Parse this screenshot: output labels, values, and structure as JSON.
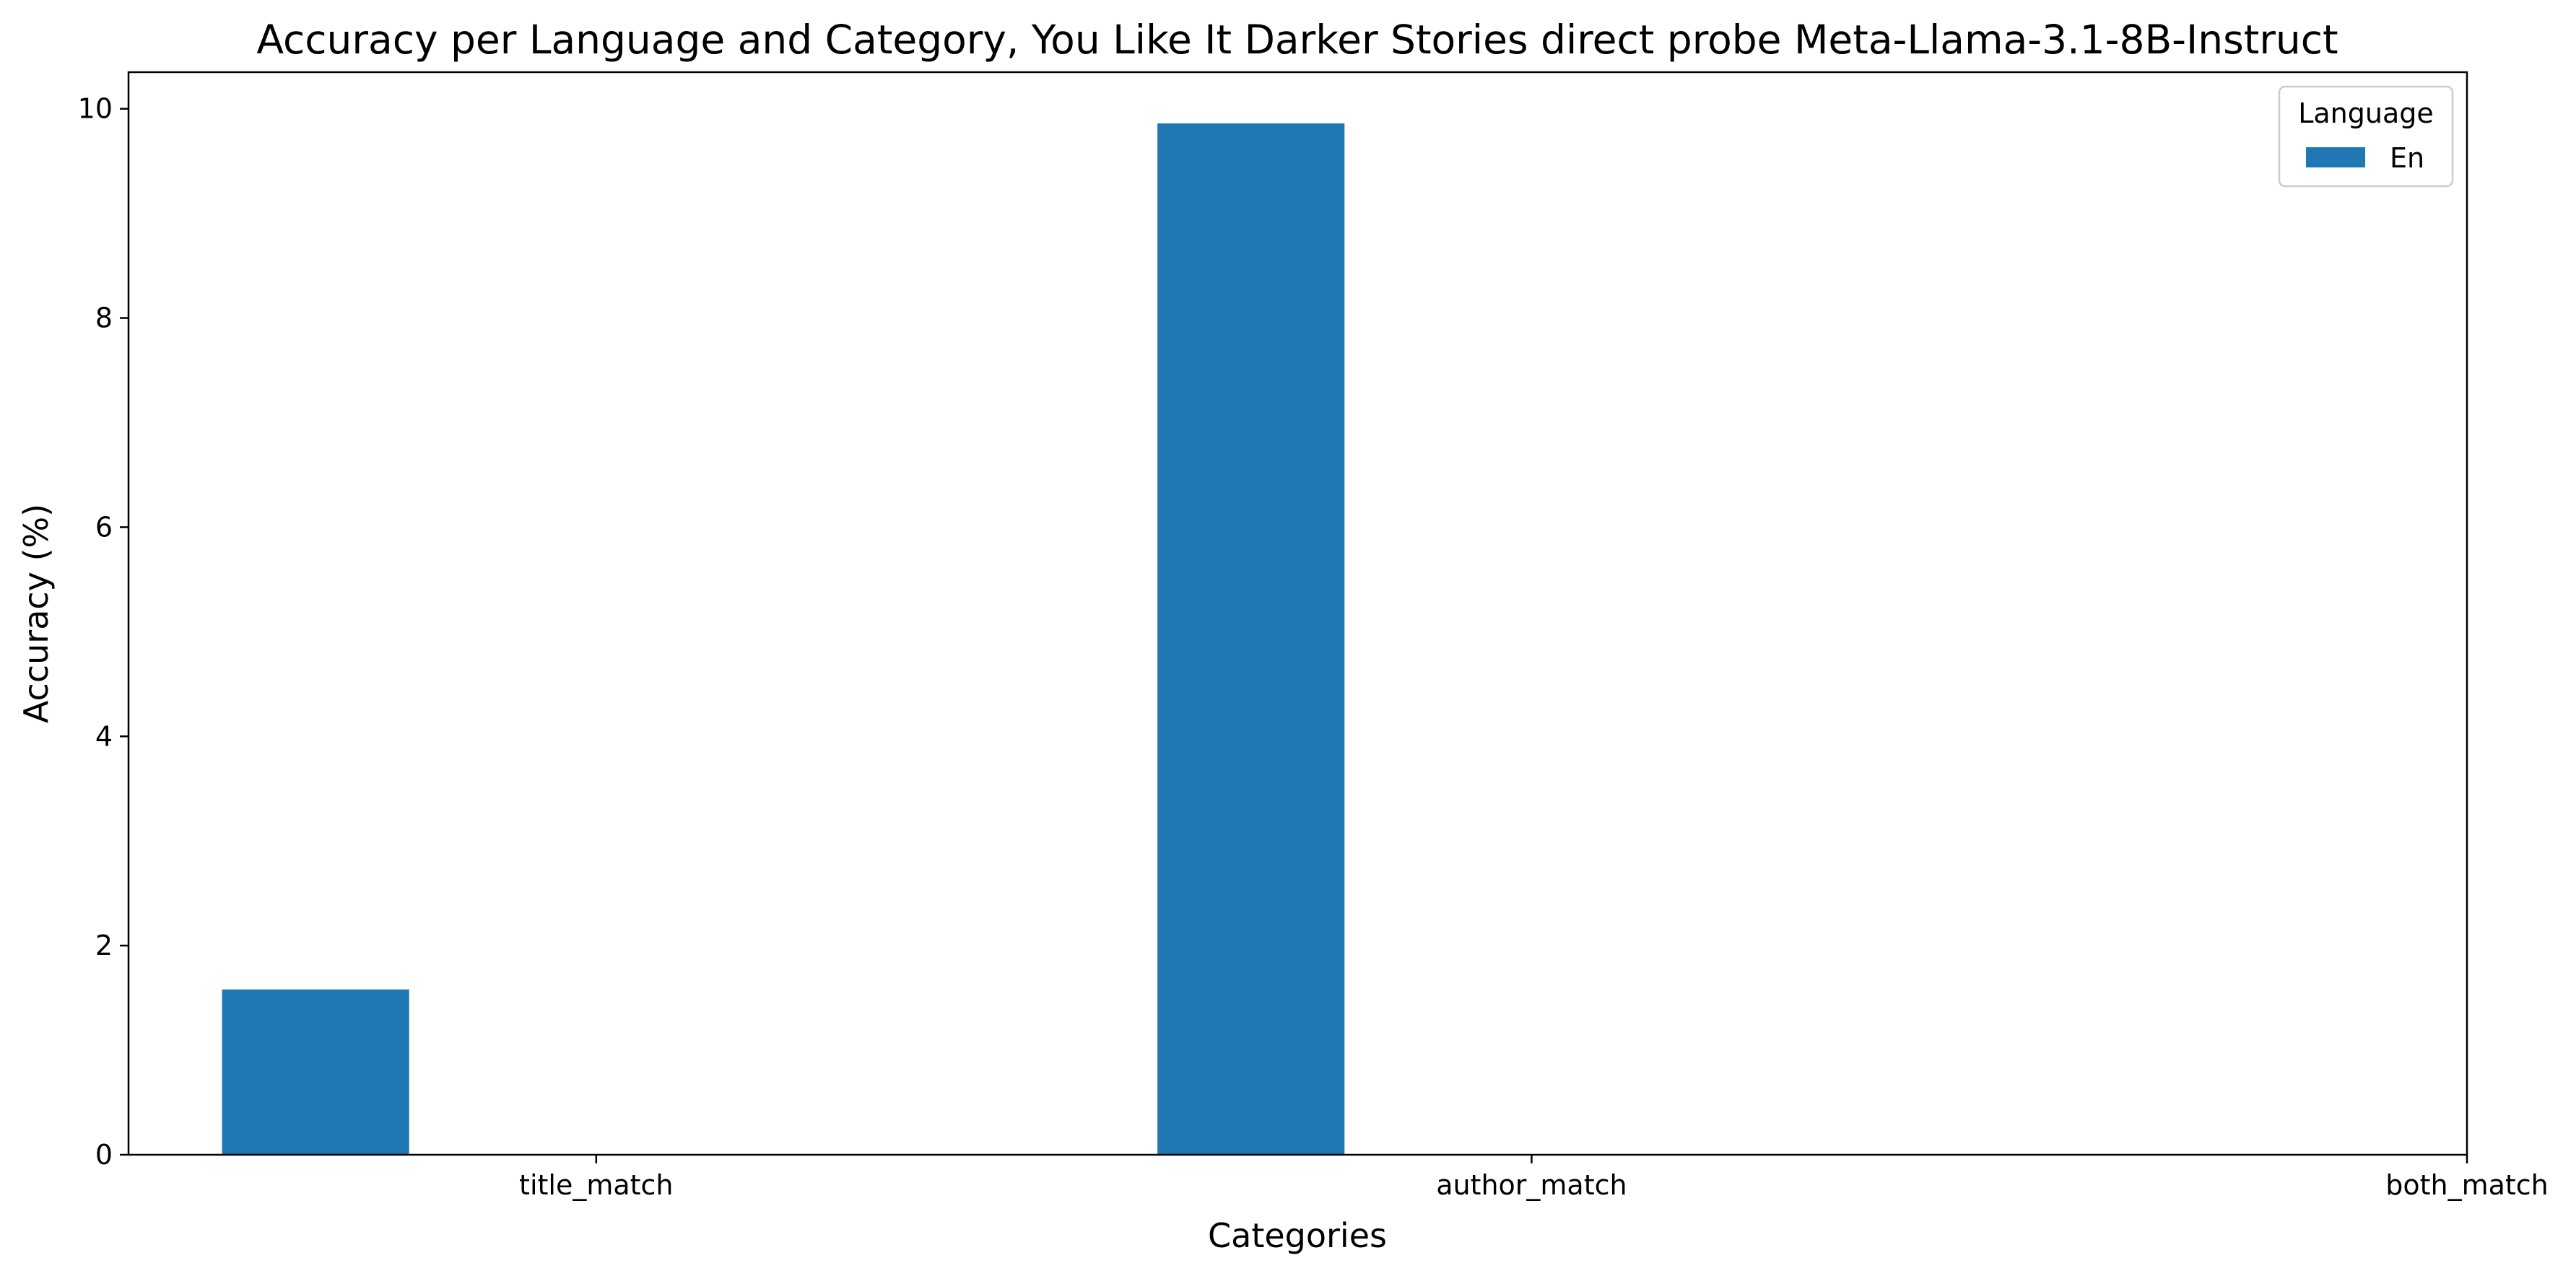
{
  "chart_data": {
    "type": "bar",
    "title": "Accuracy per Language and Category, You Like It Darker Stories direct probe Meta-Llama-3.1-8B-Instruct",
    "xlabel": "Categories",
    "ylabel": "Accuracy (%)",
    "categories": [
      "title_match",
      "author_match",
      "both_match"
    ],
    "series": [
      {
        "name": "En",
        "color": "#1f77b4",
        "values": [
          1.58,
          9.86,
          0
        ]
      }
    ],
    "ylim": [
      0,
      10.35
    ],
    "yticks": [
      0,
      2,
      4,
      6,
      8,
      10
    ],
    "ytick_labels": [
      "0",
      "2",
      "4",
      "6",
      "8",
      "10"
    ],
    "legend": {
      "title": "Language",
      "placement": "top-right"
    },
    "grid": false
  }
}
